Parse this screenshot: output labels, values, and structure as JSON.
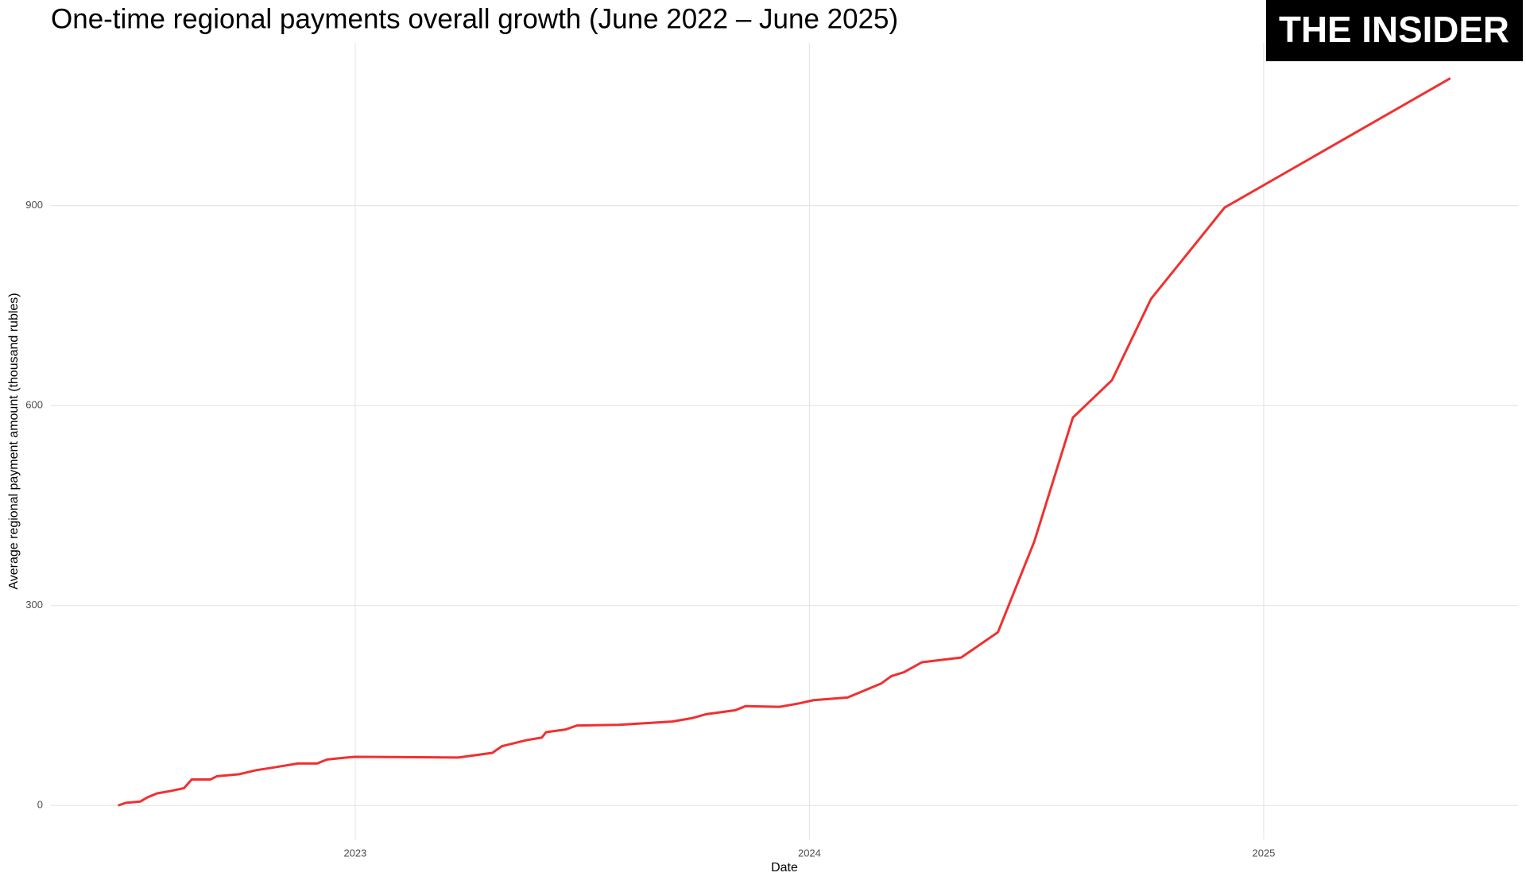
{
  "chart_data": {
    "type": "line",
    "title": "One-time regional payments overall growth (June 2022 – June 2025)",
    "logo": "THE INSIDER",
    "x_label": "Date",
    "y_label": "Average regional payment amount (thousand rubles)",
    "x": [
      2022.478,
      2022.495,
      2022.527,
      2022.542,
      2022.563,
      2022.595,
      2022.623,
      2022.64,
      2022.681,
      2022.696,
      2022.745,
      2022.782,
      2022.82,
      2022.874,
      2022.916,
      2022.938,
      2022.981,
      2023.0,
      2023.227,
      2023.302,
      2023.323,
      2023.377,
      2023.411,
      2023.42,
      2023.463,
      2023.488,
      2023.58,
      2023.698,
      2023.741,
      2023.773,
      2023.837,
      2023.859,
      2023.934,
      2023.976,
      2024.009,
      2024.084,
      2024.126,
      2024.158,
      2024.18,
      2024.208,
      2024.248,
      2024.334,
      2024.415,
      2024.495,
      2024.58,
      2024.666,
      2024.752,
      2024.914,
      2025.411
    ],
    "values": [
      0,
      4,
      6,
      12,
      18,
      22,
      26,
      39,
      39,
      44,
      47,
      53,
      57,
      63,
      63,
      69,
      72,
      73,
      72,
      79,
      89,
      98,
      102,
      110,
      114,
      120,
      121,
      126,
      131,
      137,
      143,
      149,
      148,
      153,
      158,
      162,
      174,
      183,
      194,
      200,
      215,
      222,
      260,
      396,
      582,
      638,
      760,
      897,
      1091
    ],
    "color": "#f03030",
    "xlim": [
      2022.33,
      2025.56
    ],
    "xticks": [
      2023,
      2024,
      2025
    ],
    "ylim": [
      -51,
      1144
    ],
    "yticks": [
      0,
      300,
      600,
      900
    ],
    "grid": true
  }
}
